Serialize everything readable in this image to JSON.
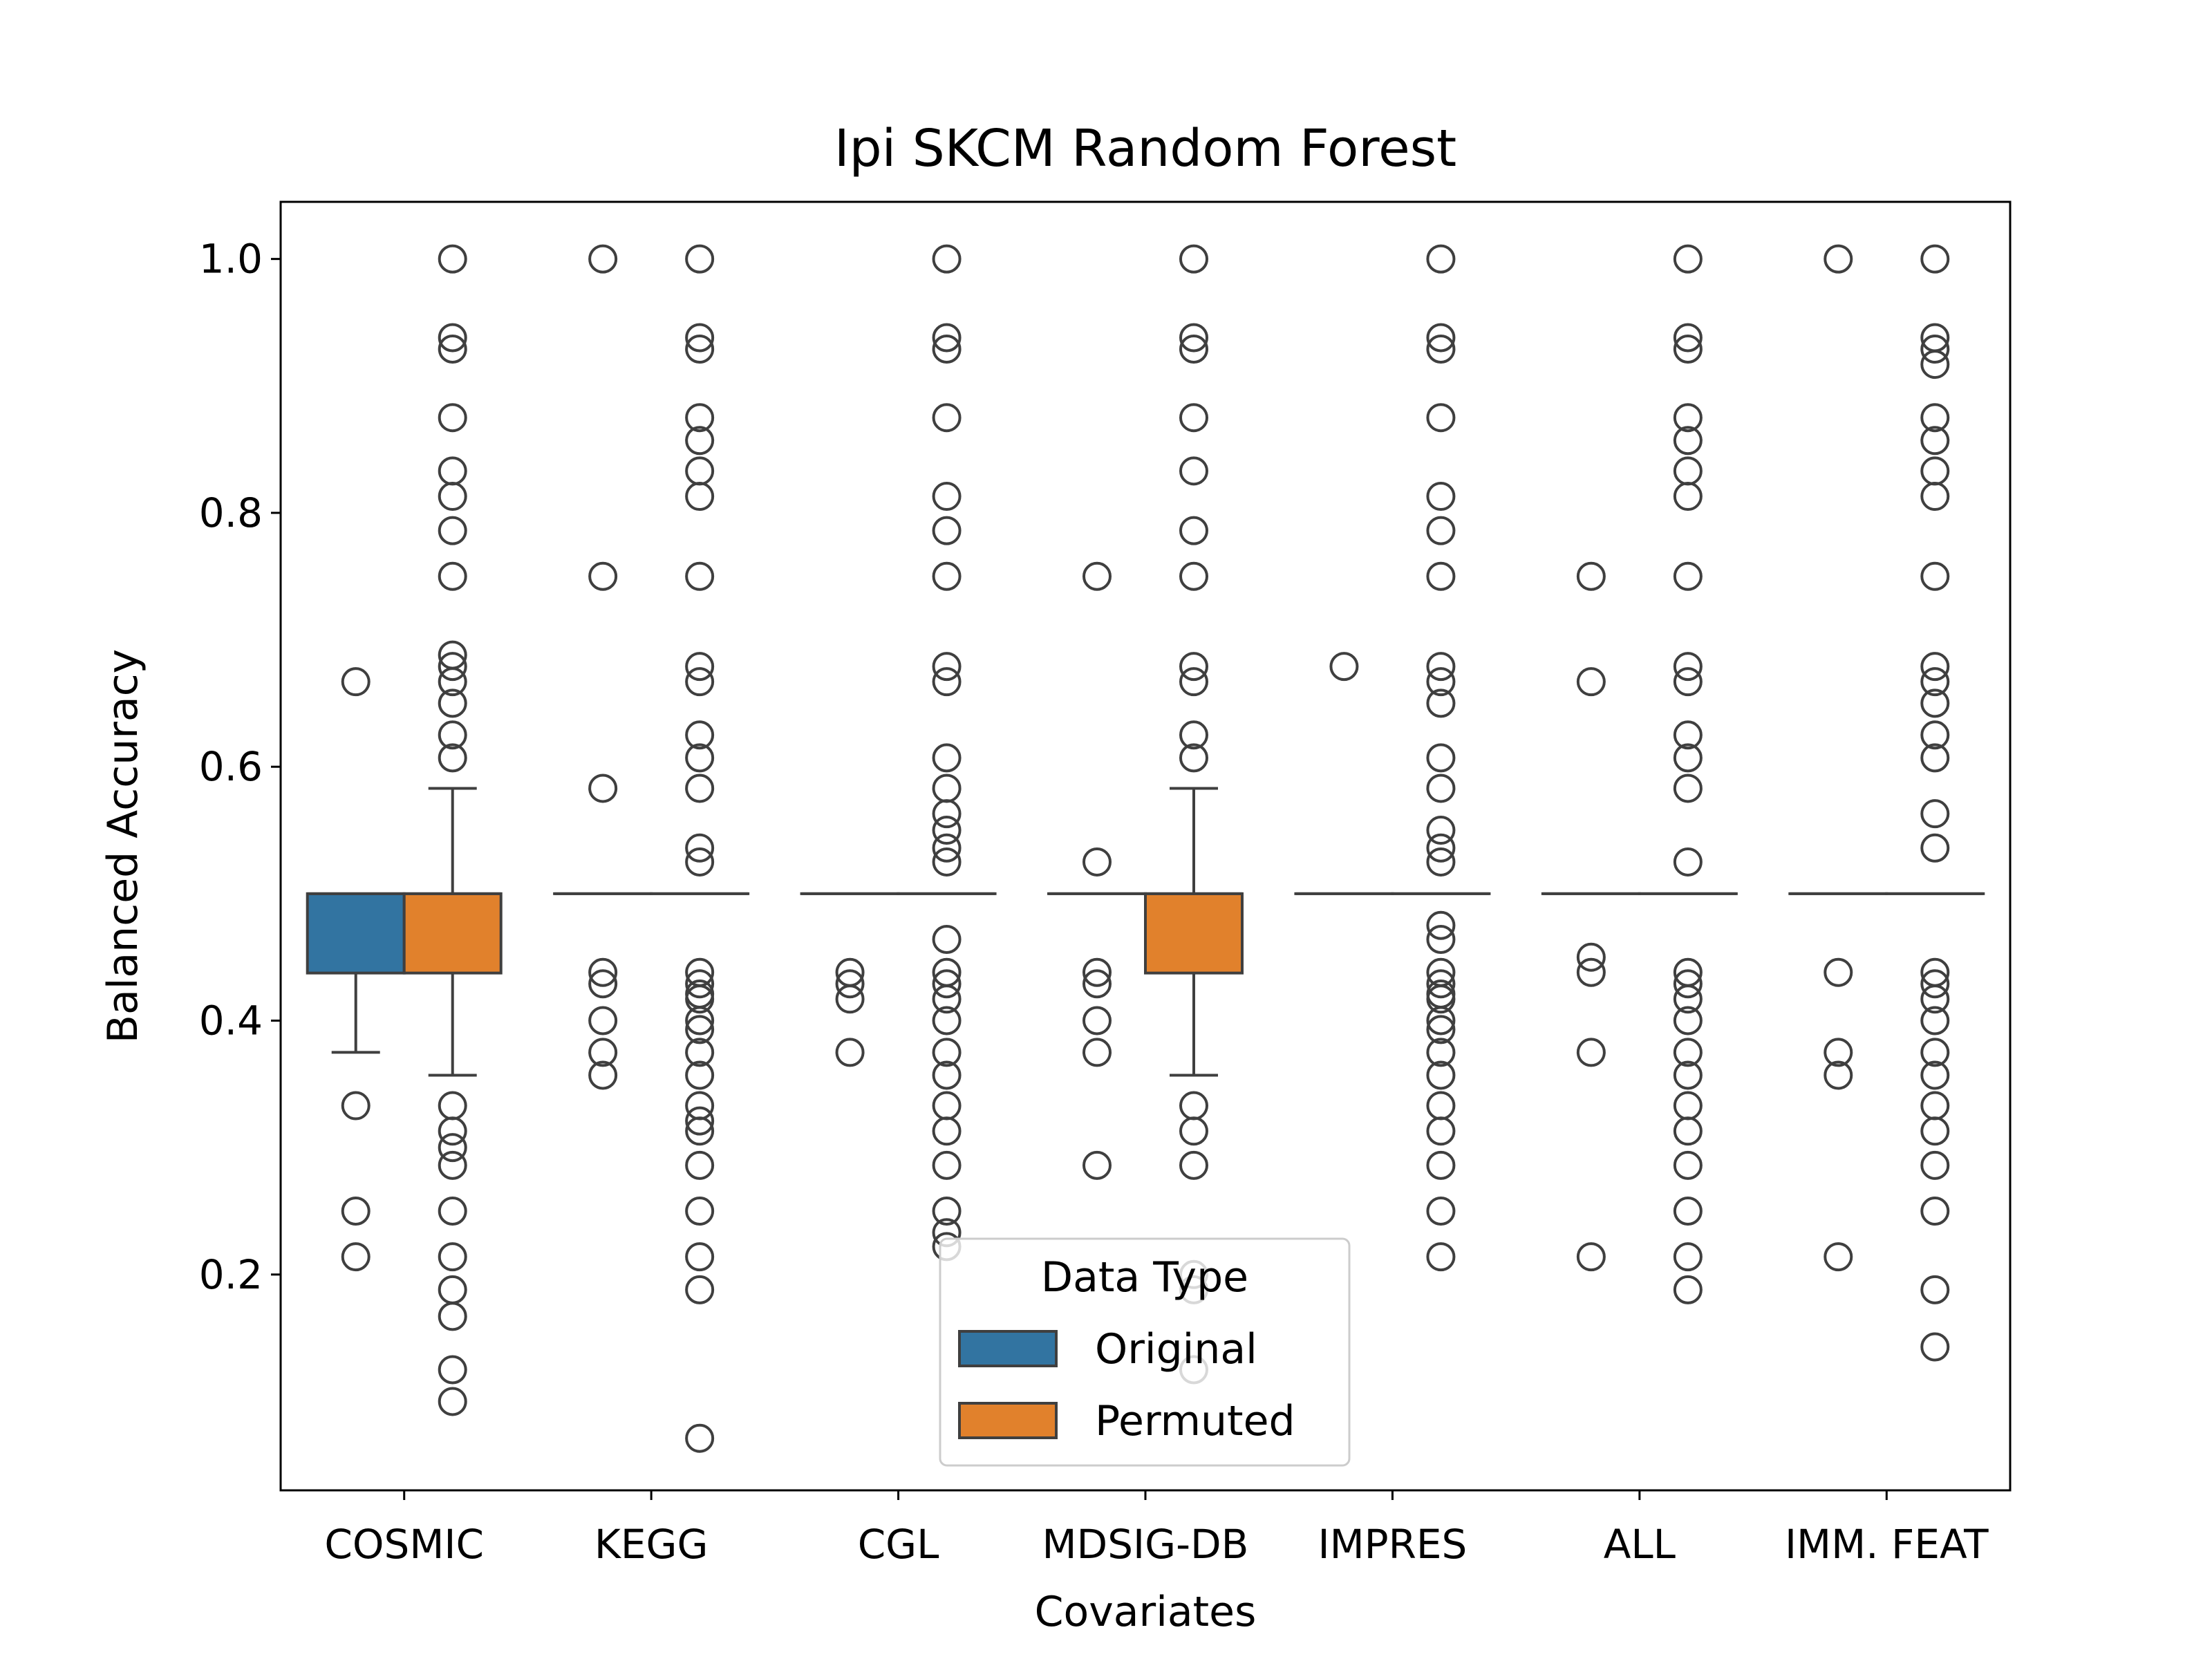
{
  "chart_data": {
    "type": "box",
    "title": "Ipi  SKCM  Random Forest",
    "xlabel": "Covariates",
    "ylabel": "Balanced Accuracy",
    "ylim": [
      0.03,
      1.045
    ],
    "yticks": [
      0.2,
      0.4,
      0.6,
      0.8,
      1.0
    ],
    "ytick_labels": [
      "0.2",
      "0.4",
      "0.6",
      "0.8",
      "1.0"
    ],
    "categories": [
      "COSMIC",
      "KEGG",
      "CGL",
      "MDSIG-DB",
      "IMPRES",
      "ALL",
      "IMM. FEAT"
    ],
    "legend": {
      "title": "Data Type",
      "placement": "lower center",
      "entries": [
        "Original",
        "Permuted"
      ]
    },
    "series": [
      {
        "name": "Original",
        "color": "#3274a1",
        "boxes": [
          {
            "q1": 0.4375,
            "median": 0.5,
            "q3": 0.5,
            "whisker_low": 0.375,
            "whisker_high": 0.5,
            "outliers": [
              0.667,
              0.333,
              0.25,
              0.214
            ]
          },
          {
            "q1": 0.5,
            "median": 0.5,
            "q3": 0.5,
            "whisker_low": 0.5,
            "whisker_high": 0.5,
            "outliers": [
              1.0,
              0.75,
              0.583,
              0.438,
              0.429,
              0.4,
              0.375,
              0.357
            ]
          },
          {
            "q1": 0.5,
            "median": 0.5,
            "q3": 0.5,
            "whisker_low": 0.5,
            "whisker_high": 0.5,
            "outliers": [
              0.438,
              0.429,
              0.417,
              0.375
            ]
          },
          {
            "q1": 0.5,
            "median": 0.5,
            "q3": 0.5,
            "whisker_low": 0.5,
            "whisker_high": 0.5,
            "outliers": [
              0.75,
              0.525,
              0.438,
              0.429,
              0.4,
              0.375,
              0.286
            ]
          },
          {
            "q1": 0.5,
            "median": 0.5,
            "q3": 0.5,
            "whisker_low": 0.5,
            "whisker_high": 0.5,
            "outliers": [
              0.679
            ]
          },
          {
            "q1": 0.5,
            "median": 0.5,
            "q3": 0.5,
            "whisker_low": 0.5,
            "whisker_high": 0.5,
            "outliers": [
              0.75,
              0.667,
              0.45,
              0.438,
              0.375,
              0.214
            ]
          },
          {
            "q1": 0.5,
            "median": 0.5,
            "q3": 0.5,
            "whisker_low": 0.5,
            "whisker_high": 0.5,
            "outliers": [
              1.0,
              0.438,
              0.375,
              0.357,
              0.214
            ]
          }
        ]
      },
      {
        "name": "Permuted",
        "color": "#e1812c",
        "boxes": [
          {
            "q1": 0.4375,
            "median": 0.5,
            "q3": 0.5,
            "whisker_low": 0.357,
            "whisker_high": 0.583,
            "outliers": [
              1.0,
              0.938,
              0.929,
              0.875,
              0.833,
              0.813,
              0.786,
              0.75,
              0.688,
              0.679,
              0.667,
              0.65,
              0.625,
              0.607,
              0.333,
              0.313,
              0.3,
              0.286,
              0.25,
              0.214,
              0.188,
              0.167,
              0.125,
              0.1
            ]
          },
          {
            "q1": 0.5,
            "median": 0.5,
            "q3": 0.5,
            "whisker_low": 0.5,
            "whisker_high": 0.5,
            "outliers": [
              1.0,
              0.938,
              0.929,
              0.875,
              0.857,
              0.833,
              0.813,
              0.75,
              0.679,
              0.667,
              0.625,
              0.607,
              0.583,
              0.536,
              0.525,
              0.438,
              0.429,
              0.421,
              0.417,
              0.4,
              0.393,
              0.375,
              0.357,
              0.333,
              0.321,
              0.313,
              0.286,
              0.25,
              0.214,
              0.188,
              0.071
            ]
          },
          {
            "q1": 0.5,
            "median": 0.5,
            "q3": 0.5,
            "whisker_low": 0.5,
            "whisker_high": 0.5,
            "outliers": [
              1.0,
              0.938,
              0.929,
              0.875,
              0.813,
              0.786,
              0.75,
              0.679,
              0.667,
              0.607,
              0.583,
              0.563,
              0.55,
              0.536,
              0.525,
              0.464,
              0.438,
              0.429,
              0.417,
              0.4,
              0.375,
              0.357,
              0.333,
              0.313,
              0.286,
              0.25,
              0.233,
              0.222
            ]
          },
          {
            "q1": 0.4375,
            "median": 0.5,
            "q3": 0.5,
            "whisker_low": 0.357,
            "whisker_high": 0.583,
            "outliers": [
              1.0,
              0.938,
              0.929,
              0.875,
              0.833,
              0.786,
              0.75,
              0.679,
              0.667,
              0.625,
              0.607,
              0.333,
              0.313,
              0.286,
              0.2,
              0.188,
              0.125
            ]
          },
          {
            "q1": 0.5,
            "median": 0.5,
            "q3": 0.5,
            "whisker_low": 0.5,
            "whisker_high": 0.5,
            "outliers": [
              1.0,
              0.938,
              0.929,
              0.875,
              0.813,
              0.786,
              0.75,
              0.679,
              0.667,
              0.65,
              0.607,
              0.583,
              0.55,
              0.536,
              0.525,
              0.475,
              0.464,
              0.438,
              0.429,
              0.421,
              0.417,
              0.4,
              0.393,
              0.375,
              0.357,
              0.333,
              0.313,
              0.286,
              0.25,
              0.214
            ]
          },
          {
            "q1": 0.5,
            "median": 0.5,
            "q3": 0.5,
            "whisker_low": 0.5,
            "whisker_high": 0.5,
            "outliers": [
              1.0,
              0.938,
              0.929,
              0.875,
              0.857,
              0.833,
              0.813,
              0.75,
              0.679,
              0.667,
              0.625,
              0.607,
              0.583,
              0.525,
              0.438,
              0.429,
              0.417,
              0.4,
              0.375,
              0.357,
              0.333,
              0.313,
              0.286,
              0.25,
              0.214,
              0.188
            ]
          },
          {
            "q1": 0.5,
            "median": 0.5,
            "q3": 0.5,
            "whisker_low": 0.5,
            "whisker_high": 0.5,
            "outliers": [
              1.0,
              0.938,
              0.929,
              0.917,
              0.875,
              0.857,
              0.833,
              0.813,
              0.75,
              0.679,
              0.667,
              0.65,
              0.625,
              0.607,
              0.563,
              0.536,
              0.438,
              0.429,
              0.417,
              0.4,
              0.375,
              0.357,
              0.333,
              0.313,
              0.286,
              0.25,
              0.188,
              0.143
            ]
          }
        ]
      }
    ]
  }
}
